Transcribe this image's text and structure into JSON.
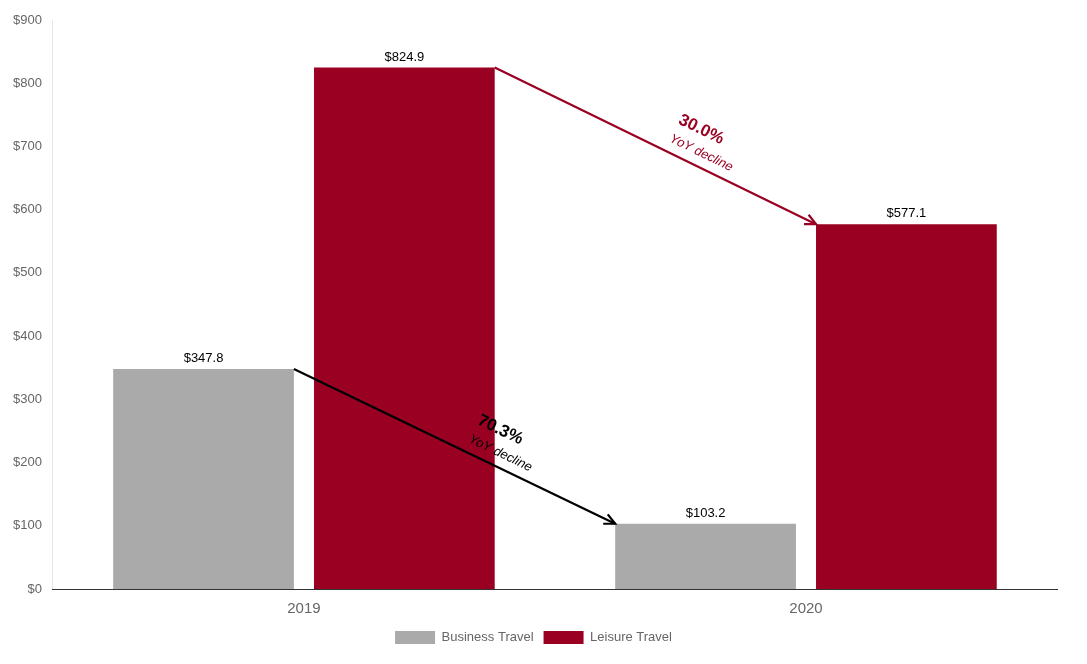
{
  "chart_data": {
    "type": "bar",
    "categories": [
      "2019",
      "2020"
    ],
    "series": [
      {
        "name": "Business Travel",
        "color": "#AAAAAA",
        "values": [
          347.8,
          103.2
        ],
        "value_labels": [
          "$347.8",
          "$103.2"
        ]
      },
      {
        "name": "Leisure Travel",
        "color": "#990022",
        "values": [
          824.9,
          577.1
        ],
        "value_labels": [
          "$824.9",
          "$577.1"
        ]
      }
    ],
    "ylim": [
      0,
      900
    ],
    "yticks": [
      {
        "value": 0,
        "label": "$0"
      },
      {
        "value": 100,
        "label": "$100"
      },
      {
        "value": 200,
        "label": "$200"
      },
      {
        "value": 300,
        "label": "$300"
      },
      {
        "value": 400,
        "label": "$400"
      },
      {
        "value": 500,
        "label": "$500"
      },
      {
        "value": 600,
        "label": "$600"
      },
      {
        "value": 700,
        "label": "$700"
      },
      {
        "value": 800,
        "label": "$800"
      },
      {
        "value": 900,
        "label": "$900"
      }
    ],
    "grid": false,
    "legend": "bottom",
    "data_labels": true,
    "annotations": [
      {
        "series": "Business Travel",
        "texts": [
          "70.3%",
          "YoY decline"
        ],
        "color": "#000000"
      },
      {
        "series": "Leisure Travel",
        "texts": [
          "30.0%",
          "YoY decline"
        ],
        "color": "#990022"
      }
    ]
  }
}
